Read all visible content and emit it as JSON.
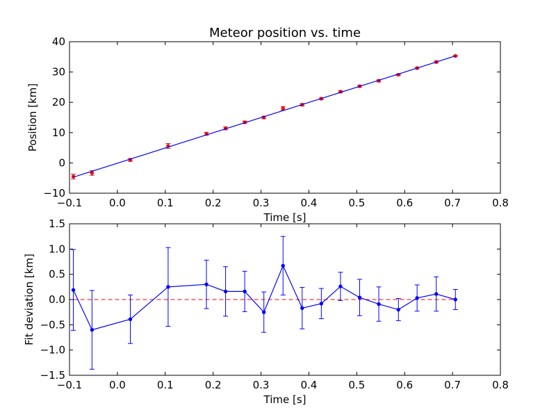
{
  "chart_data": [
    {
      "type": "line",
      "title": "Meteor position vs. time",
      "xlabel": "Time [s]",
      "ylabel": "Position [km]",
      "xlim": [
        -0.1,
        0.8
      ],
      "ylim": [
        -10,
        40
      ],
      "xticks": [
        -0.1,
        0.0,
        0.1,
        0.2,
        0.3,
        0.4,
        0.5,
        0.6,
        0.7,
        0.8
      ],
      "xtick_labels": [
        "−0.1",
        "0.0",
        "0.1",
        "0.2",
        "0.3",
        "0.4",
        "0.5",
        "0.6",
        "0.7",
        "0.8"
      ],
      "yticks": [
        -10,
        0,
        10,
        20,
        30,
        40
      ],
      "ytick_labels": [
        "−10",
        "0",
        "10",
        "20",
        "30",
        "40"
      ],
      "grid": false,
      "series": [
        {
          "kind": "errorbar-points",
          "color": "#ff0000",
          "errcolor": "#b03030",
          "x": [
            -0.092,
            -0.053,
            0.027,
            0.106,
            0.186,
            0.226,
            0.266,
            0.306,
            0.346,
            0.386,
            0.426,
            0.466,
            0.506,
            0.546,
            0.587,
            0.626,
            0.666,
            0.706
          ],
          "y": [
            -4.5,
            -3.3,
            1.0,
            5.6,
            9.6,
            11.4,
            13.4,
            15.0,
            18.0,
            19.2,
            21.2,
            23.5,
            25.3,
            27.1,
            29.1,
            31.3,
            33.3,
            35.3
          ],
          "err": [
            0.8,
            0.8,
            0.5,
            0.8,
            0.5,
            0.5,
            0.4,
            0.4,
            0.6,
            0.4,
            0.3,
            0.3,
            0.35,
            0.35,
            0.22,
            0.26,
            0.34,
            0.2
          ]
        },
        {
          "kind": "fit-line",
          "color": "#0000ff",
          "x": [
            -0.092,
            0.706
          ],
          "y": [
            -4.7,
            35.3
          ]
        }
      ]
    },
    {
      "type": "line",
      "title": "",
      "xlabel": "Time [s]",
      "ylabel": "Fit deviation [km]",
      "xlim": [
        -0.1,
        0.8
      ],
      "ylim": [
        -1.5,
        1.5
      ],
      "xticks": [
        -0.1,
        0.0,
        0.1,
        0.2,
        0.3,
        0.4,
        0.5,
        0.6,
        0.7,
        0.8
      ],
      "xtick_labels": [
        "−0.1",
        "0.0",
        "0.1",
        "0.2",
        "0.3",
        "0.4",
        "0.5",
        "0.6",
        "0.7",
        "0.8"
      ],
      "yticks": [
        -1.5,
        -1.0,
        -0.5,
        0.0,
        0.5,
        1.0,
        1.5
      ],
      "ytick_labels": [
        "−1.5",
        "−1.0",
        "−0.5",
        "0.0",
        "0.5",
        "1.0",
        "1.5"
      ],
      "grid": false,
      "series": [
        {
          "kind": "errorbar-line",
          "color": "#0000ff",
          "x": [
            -0.092,
            -0.053,
            0.027,
            0.106,
            0.186,
            0.226,
            0.266,
            0.306,
            0.346,
            0.386,
            0.426,
            0.466,
            0.506,
            0.546,
            0.587,
            0.626,
            0.666,
            0.706
          ],
          "y": [
            0.19,
            -0.6,
            -0.39,
            0.25,
            0.3,
            0.16,
            0.16,
            -0.25,
            0.67,
            -0.17,
            -0.08,
            0.26,
            0.04,
            -0.09,
            -0.2,
            0.03,
            0.11,
            0.0
          ],
          "err": [
            0.8,
            0.78,
            0.48,
            0.78,
            0.48,
            0.49,
            0.4,
            0.4,
            0.58,
            0.41,
            0.3,
            0.28,
            0.36,
            0.34,
            0.22,
            0.26,
            0.34,
            0.2
          ]
        },
        {
          "kind": "reference-line",
          "color": "#ff0000",
          "dashed": true,
          "x": [
            -0.092,
            0.706
          ],
          "y": [
            0.0,
            0.0
          ]
        }
      ]
    }
  ]
}
